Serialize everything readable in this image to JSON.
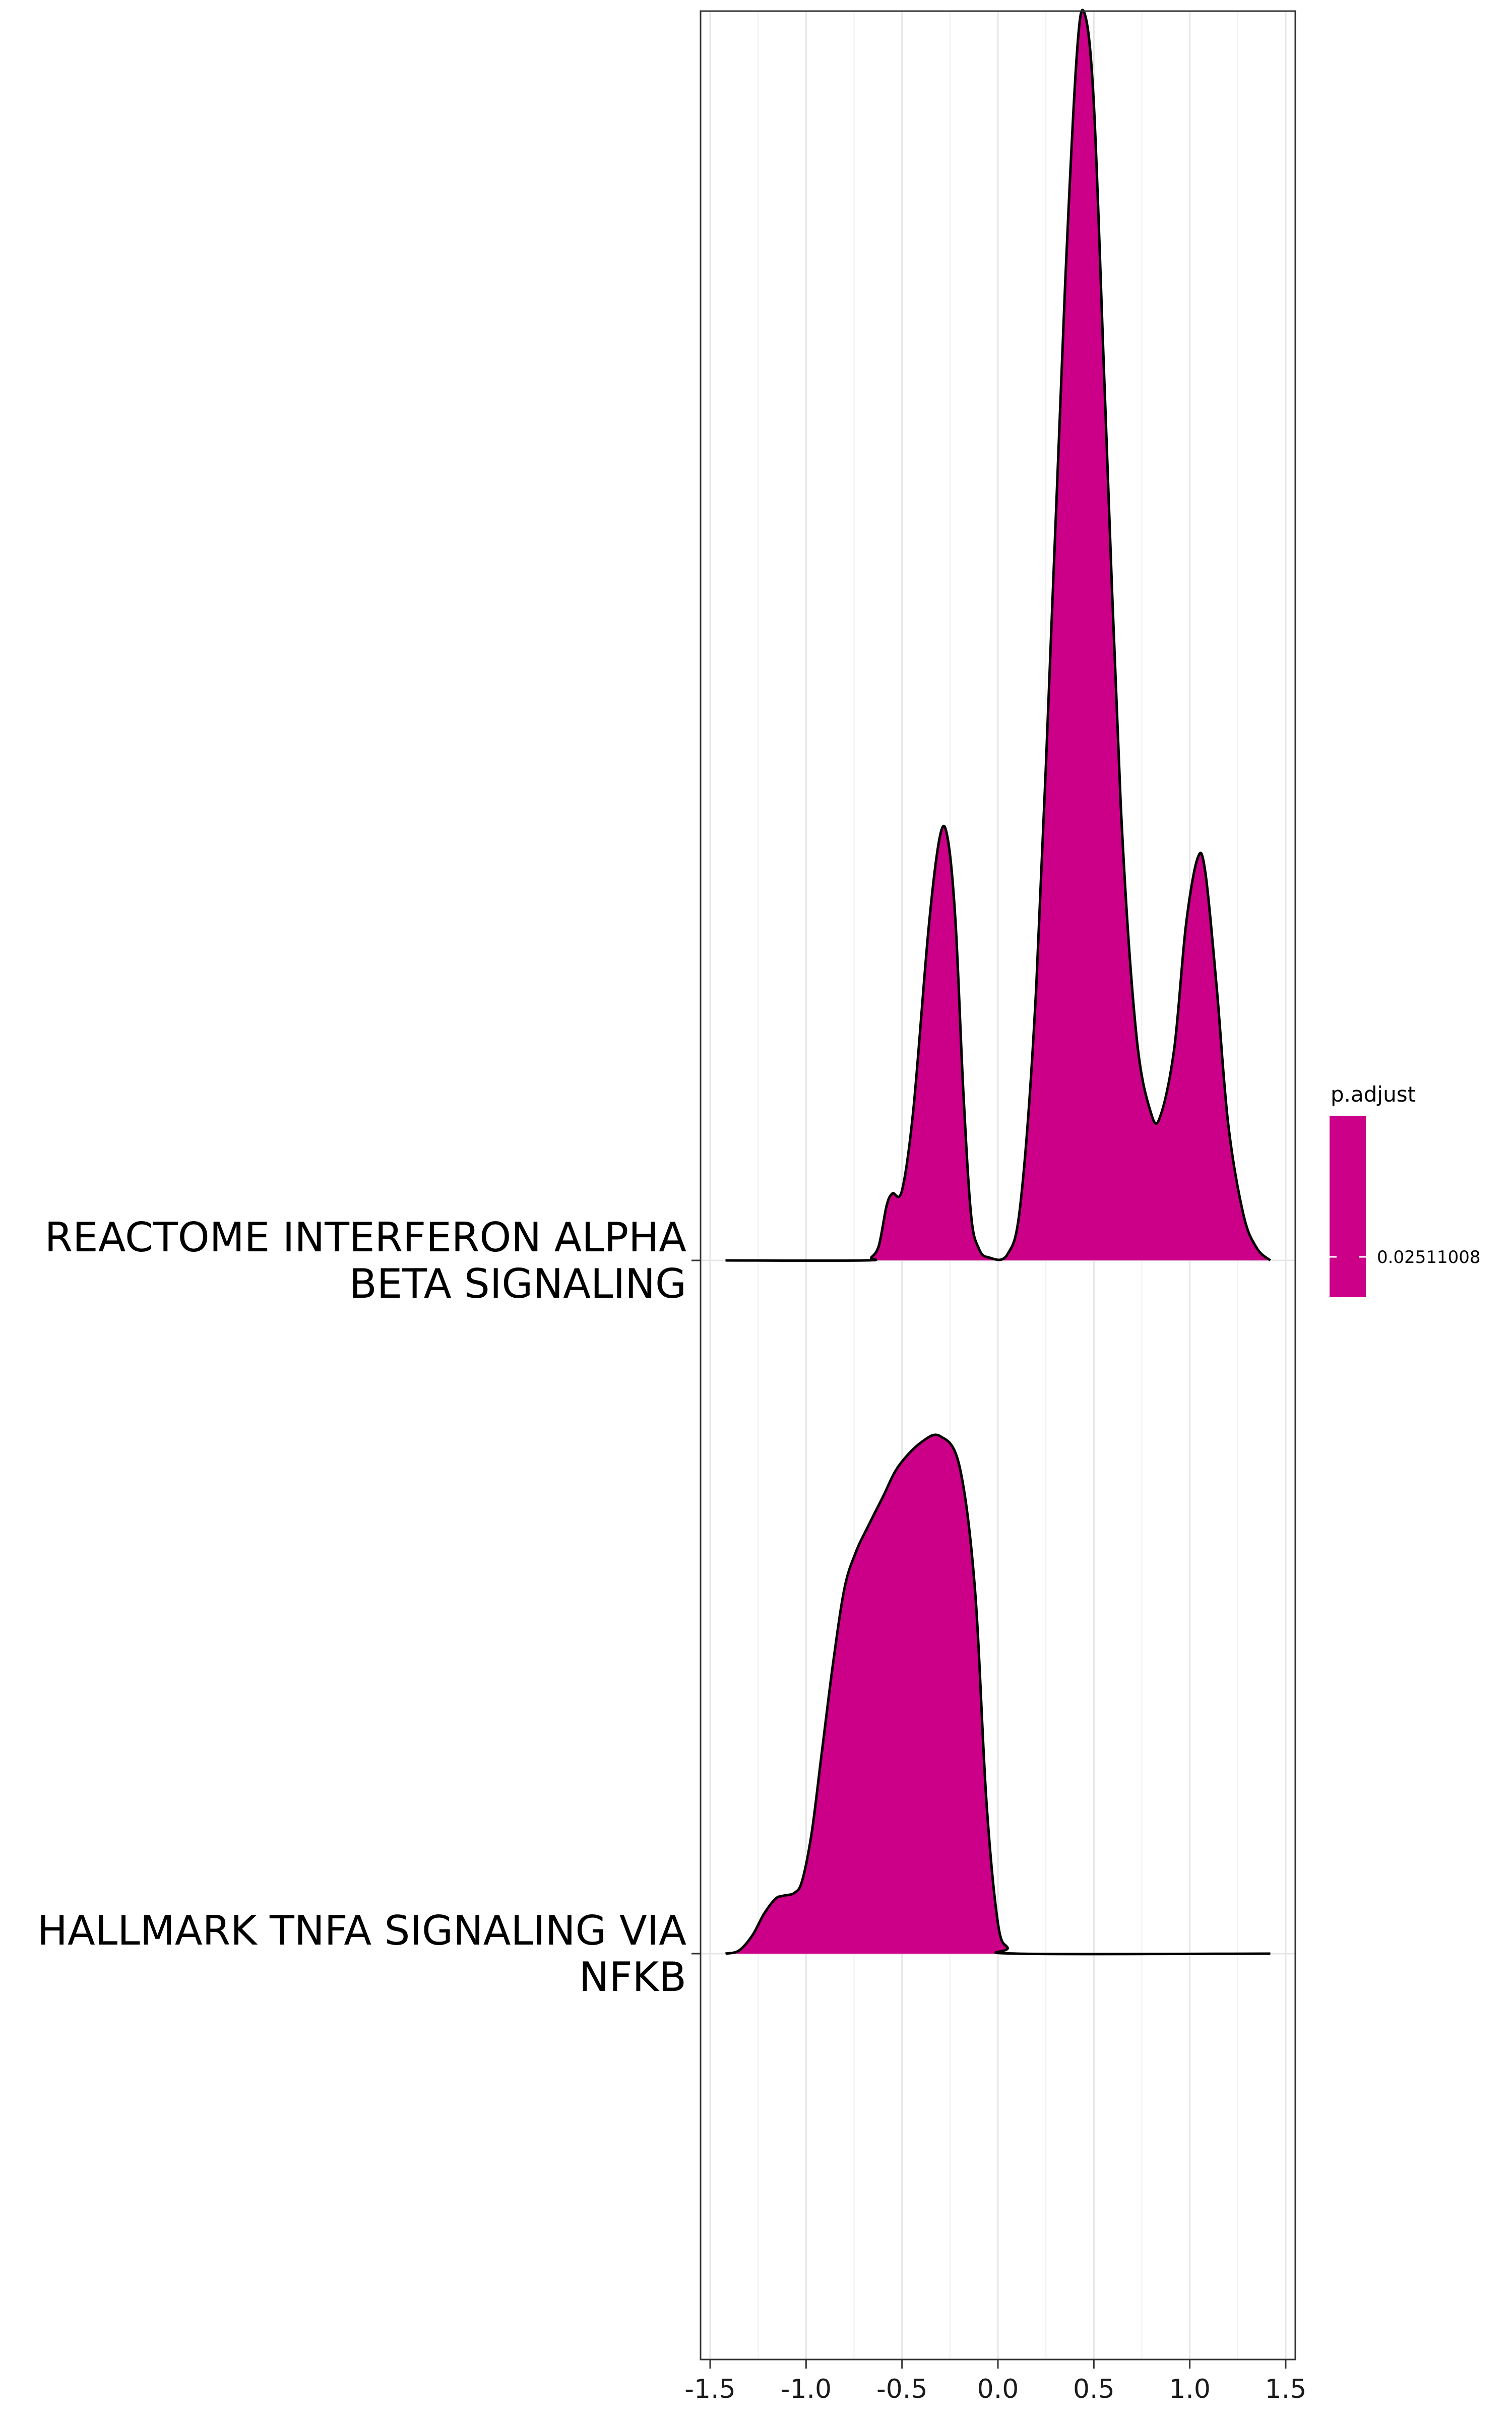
{
  "colors": {
    "fill": "#CC0088",
    "outline": "#000000",
    "grid": "#E6E6E6",
    "panel_border": "#333333"
  },
  "chart_data": {
    "type": "ridgeline",
    "title": "",
    "xlabel": "",
    "ylabel": "",
    "xlim": [
      -1.55,
      1.55
    ],
    "x_ticks": [
      -1.5,
      -1.0,
      -0.5,
      0.0,
      0.5,
      1.0,
      1.5
    ],
    "x_tick_labels": [
      "-1.5",
      "-1.0",
      "-0.5",
      "0.0",
      "0.5",
      "1.0",
      "1.5"
    ],
    "grid": true,
    "categories": [
      "HALLMARK TNFA SIGNALING VIA NFKB",
      "REACTOME INTERFERON ALPHA BETA SIGNALING"
    ],
    "category_lines": [
      [
        "HALLMARK TNFA SIGNALING VIA",
        "NFKB"
      ],
      [
        "REACTOME INTERFERON ALPHA",
        "BETA SIGNALING"
      ]
    ],
    "series": [
      {
        "name": "HALLMARK TNFA SIGNALING VIA NFKB",
        "p_adjust": 0.02511008,
        "x_range": [
          -1.42,
          1.42
        ],
        "density": [
          [
            -1.42,
            0.0
          ],
          [
            -1.35,
            0.01
          ],
          [
            -1.28,
            0.06
          ],
          [
            -1.22,
            0.13
          ],
          [
            -1.16,
            0.18
          ],
          [
            -1.12,
            0.19
          ],
          [
            -1.06,
            0.2
          ],
          [
            -1.02,
            0.24
          ],
          [
            -0.97,
            0.4
          ],
          [
            -0.92,
            0.65
          ],
          [
            -0.86,
            0.95
          ],
          [
            -0.8,
            1.2
          ],
          [
            -0.74,
            1.32
          ],
          [
            -0.68,
            1.4
          ],
          [
            -0.6,
            1.5
          ],
          [
            -0.52,
            1.6
          ],
          [
            -0.4,
            1.68
          ],
          [
            -0.3,
            1.7
          ],
          [
            -0.2,
            1.6
          ],
          [
            -0.12,
            1.2
          ],
          [
            -0.06,
            0.5
          ],
          [
            0.0,
            0.1
          ],
          [
            0.05,
            0.02
          ],
          [
            0.1,
            0.0
          ],
          [
            1.42,
            0.0
          ]
        ]
      },
      {
        "name": "REACTOME INTERFERON ALPHA BETA SIGNALING",
        "p_adjust": 0.02511008,
        "x_range": [
          -1.42,
          1.42
        ],
        "density": [
          [
            -1.42,
            0.0
          ],
          [
            -0.7,
            0.0
          ],
          [
            -0.66,
            0.01
          ],
          [
            -0.62,
            0.05
          ],
          [
            -0.58,
            0.18
          ],
          [
            -0.55,
            0.22
          ],
          [
            -0.5,
            0.23
          ],
          [
            -0.44,
            0.5
          ],
          [
            -0.36,
            1.1
          ],
          [
            -0.3,
            1.4
          ],
          [
            -0.26,
            1.38
          ],
          [
            -0.22,
            1.1
          ],
          [
            -0.18,
            0.55
          ],
          [
            -0.14,
            0.15
          ],
          [
            -0.1,
            0.04
          ],
          [
            -0.05,
            0.01
          ],
          [
            0.05,
            0.02
          ],
          [
            0.12,
            0.2
          ],
          [
            0.2,
            0.9
          ],
          [
            0.28,
            2.1
          ],
          [
            0.35,
            3.2
          ],
          [
            0.41,
            3.95
          ],
          [
            0.45,
            4.1
          ],
          [
            0.5,
            3.8
          ],
          [
            0.56,
            2.8
          ],
          [
            0.64,
            1.5
          ],
          [
            0.72,
            0.75
          ],
          [
            0.8,
            0.48
          ],
          [
            0.85,
            0.48
          ],
          [
            0.92,
            0.7
          ],
          [
            0.98,
            1.1
          ],
          [
            1.04,
            1.32
          ],
          [
            1.08,
            1.28
          ],
          [
            1.14,
            0.9
          ],
          [
            1.2,
            0.45
          ],
          [
            1.28,
            0.15
          ],
          [
            1.35,
            0.04
          ],
          [
            1.42,
            0.0
          ]
        ]
      }
    ],
    "legend": {
      "title": "p.adjust",
      "labels": [
        "0.02511008"
      ],
      "placement": "right"
    }
  }
}
